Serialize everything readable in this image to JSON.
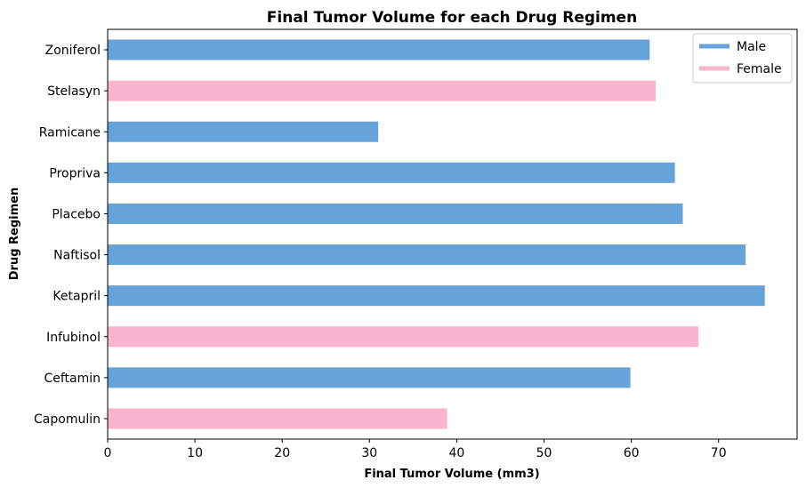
{
  "chart_data": {
    "type": "bar",
    "orientation": "horizontal",
    "title": "Final Tumor Volume for each Drug Regimen",
    "xlabel": "Final Tumor Volume (mm3)",
    "ylabel": "Drug Regimen",
    "xlim": [
      0,
      79
    ],
    "xticks": [
      0,
      10,
      20,
      30,
      40,
      50,
      60,
      70
    ],
    "categories": [
      "Capomulin",
      "Ceftamin",
      "Infubinol",
      "Ketapril",
      "Naftisol",
      "Placebo",
      "Propriva",
      "Ramicane",
      "Stelasyn",
      "Zoniferol"
    ],
    "values": [
      38.9,
      59.9,
      67.7,
      75.3,
      73.1,
      65.9,
      65.0,
      31.0,
      62.8,
      62.1
    ],
    "sex": [
      "Female",
      "Male",
      "Female",
      "Male",
      "Male",
      "Male",
      "Male",
      "Male",
      "Female",
      "Male"
    ],
    "colors": {
      "Male": "#66a3d9",
      "Female": "#f9b5cd"
    },
    "legend": {
      "position": "top-right",
      "entries": [
        {
          "label": "Male",
          "color": "#66a3d9"
        },
        {
          "label": "Female",
          "color": "#f9b5cd"
        }
      ]
    },
    "grid": false
  }
}
